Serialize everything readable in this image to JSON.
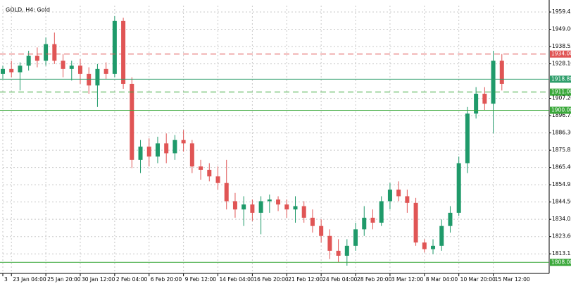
{
  "chart_data": {
    "type": "candlestick",
    "title": "GOLD, H4:  Gold",
    "categories": [
      "3",
      "23 Jan 04:00",
      null,
      null,
      null,
      "25 Jan 20:00",
      null,
      null,
      null,
      "30 Jan 12:00",
      null,
      null,
      null,
      "2 Feb 04:00",
      null,
      null,
      null,
      "6 Feb 20:00",
      null,
      null,
      null,
      "9 Feb 12:00",
      null,
      null,
      null,
      "14 Feb 04:00",
      null,
      null,
      null,
      "16 Feb 20:00",
      null,
      null,
      null,
      "21 Feb 12:00",
      null,
      null,
      null,
      "24 Feb 04:00",
      null,
      null,
      null,
      "28 Feb 20:00",
      null,
      null,
      null,
      "3 Mar 12:00",
      null,
      null,
      null,
      "8 Mar 04:00",
      null,
      null,
      null,
      "10 Mar 20:00",
      null,
      null,
      null,
      "15 Mar 12:00",
      null
    ],
    "open": [
      1922,
      1925,
      1923,
      1927,
      1933,
      1930,
      1940,
      1930,
      1925,
      1927,
      1922,
      1915,
      1925,
      1922,
      1954,
      1916,
      1870,
      1878,
      1872,
      1880,
      1874,
      1882,
      1880,
      1866,
      1864,
      1860,
      1856,
      1845,
      1840,
      1843,
      1838,
      1845,
      1846,
      1843,
      1840,
      1842,
      1835,
      1830,
      1824,
      1815,
      1812,
      1818,
      1828,
      1835,
      1832,
      1845,
      1852,
      1848,
      1844,
      1820,
      1816,
      1818,
      1830,
      1838,
      1868,
      1898,
      1910,
      1904,
      1930
    ],
    "high": [
      1927,
      1930,
      1929,
      1936,
      1938,
      1944,
      1947,
      1934,
      1930,
      1931,
      1926,
      1928,
      1929,
      1957,
      1956,
      1920,
      1882,
      1883,
      1884,
      1886,
      1885,
      1888,
      1882,
      1870,
      1868,
      1866,
      1870,
      1850,
      1848,
      1846,
      1848,
      1849,
      1848,
      1846,
      1848,
      1845,
      1840,
      1834,
      1828,
      1822,
      1822,
      1832,
      1842,
      1840,
      1848,
      1856,
      1857,
      1852,
      1847,
      1822,
      1822,
      1834,
      1842,
      1872,
      1902,
      1914,
      1914,
      1936,
      1934
    ],
    "low": [
      1919,
      1920,
      1912,
      1924,
      1926,
      1927,
      1928,
      1920,
      1918,
      1916,
      1910,
      1902,
      1919,
      1920,
      1913,
      1865,
      1862,
      1866,
      1868,
      1868,
      1870,
      1875,
      1862,
      1858,
      1857,
      1852,
      1840,
      1835,
      1830,
      1833,
      1825,
      1838,
      1839,
      1835,
      1832,
      1832,
      1826,
      1820,
      1810,
      1808,
      1806,
      1815,
      1824,
      1828,
      1830,
      1840,
      1845,
      1838,
      1818,
      1814,
      1813,
      1815,
      1826,
      1836,
      1862,
      1895,
      1900,
      1886,
      1912
    ],
    "close": [
      1925,
      1923,
      1927,
      1933,
      1930,
      1940,
      1930,
      1925,
      1927,
      1922,
      1915,
      1925,
      1922,
      1954,
      1916,
      1870,
      1878,
      1872,
      1880,
      1874,
      1882,
      1880,
      1866,
      1864,
      1860,
      1856,
      1845,
      1840,
      1843,
      1838,
      1845,
      1846,
      1843,
      1840,
      1842,
      1835,
      1830,
      1824,
      1815,
      1812,
      1818,
      1828,
      1835,
      1832,
      1845,
      1852,
      1848,
      1844,
      1820,
      1816,
      1818,
      1830,
      1838,
      1868,
      1898,
      1910,
      1904,
      1930,
      1916
    ],
    "up_color": "#1f9a6a",
    "down_color": "#e05555",
    "ylim": [
      1801.3,
      1963.3
    ],
    "yticks": [
      1959.45,
      {
        "value": 1949,
        "label": "1949.00"
      },
      {
        "value": 1938.55,
        "label": "1938.55"
      },
      {
        "value": 1928.1,
        "label": "1928.10"
      },
      {
        "value": 1907.2,
        "label": "1907.20"
      },
      1896.75,
      {
        "value": 1886.3,
        "label": "1886.30"
      },
      1875.85,
      {
        "value": 1865.4,
        "label": "1865.40"
      },
      1854.95,
      {
        "value": 1844.5,
        "label": "1844.50"
      },
      1834.05,
      {
        "value": 1823.6,
        "label": "1823.60"
      },
      1813.15
    ],
    "levels": [
      {
        "value": 1934,
        "label": "1934.00",
        "color": "#e05555",
        "style": "dashed"
      },
      {
        "value": 1918.8,
        "label": "1918.80",
        "color": "#2e9e6b",
        "style": "solid"
      },
      {
        "value": 1911,
        "label": "1911.00",
        "color": "#3aa83a",
        "style": "dashed"
      },
      {
        "value": 1900,
        "label": "1900.00",
        "color": "#3aa83a",
        "style": "solid"
      },
      {
        "value": 1808,
        "label": "1808.00",
        "color": "#3aa83a",
        "style": "solid"
      }
    ],
    "grid": true
  }
}
